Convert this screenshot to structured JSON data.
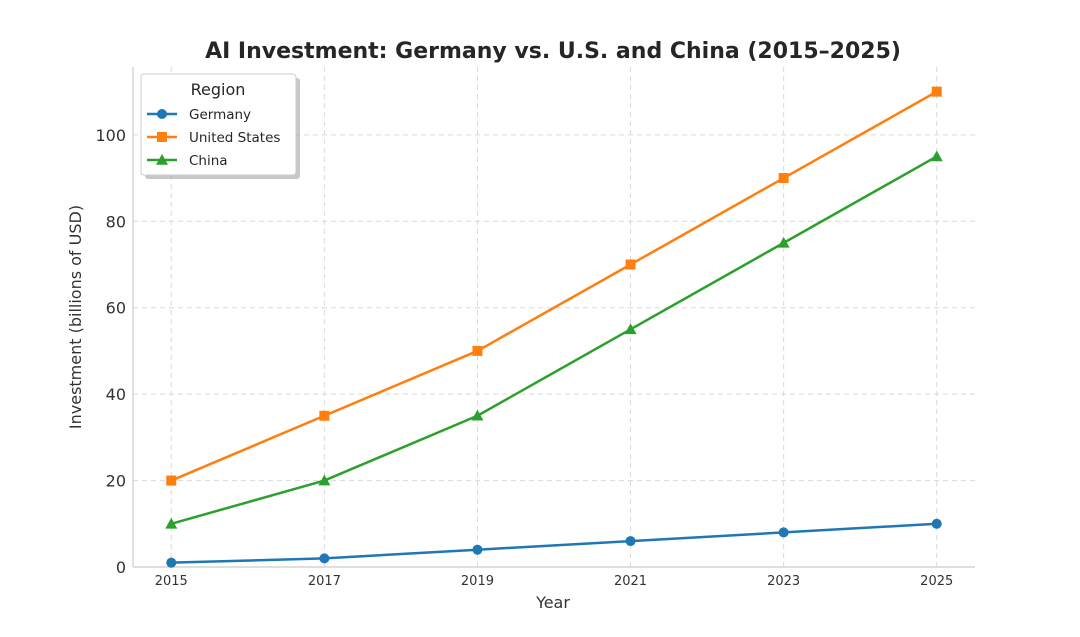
{
  "chart_data": {
    "type": "line",
    "title": "AI Investment: Germany vs. U.S. and China (2015–2025)",
    "xlabel": "Year",
    "ylabel": "Investment (billions of USD)",
    "x": [
      2015,
      2017,
      2019,
      2021,
      2023,
      2025
    ],
    "xticks": [
      "2015",
      "2017",
      "2019",
      "2021",
      "2023",
      "2025"
    ],
    "yticks": [
      "0",
      "20",
      "40",
      "60",
      "80",
      "100"
    ],
    "ytick_values": [
      0,
      20,
      40,
      60,
      80,
      100
    ],
    "xlim": [
      2014.5,
      2025.5
    ],
    "ylim": [
      0,
      115.7
    ],
    "grid": true,
    "legend": {
      "title": "Region",
      "placement": "top-left"
    },
    "series": [
      {
        "name": "Germany",
        "color": "#1f77b4",
        "marker": "circle",
        "values": [
          1,
          2,
          4,
          6,
          8,
          10
        ]
      },
      {
        "name": "United States",
        "color": "#ff7f0e",
        "marker": "square",
        "values": [
          20,
          35,
          50,
          70,
          90,
          110
        ]
      },
      {
        "name": "China",
        "color": "#2ca02c",
        "marker": "triangle",
        "values": [
          10,
          20,
          35,
          55,
          75,
          95
        ]
      }
    ]
  }
}
